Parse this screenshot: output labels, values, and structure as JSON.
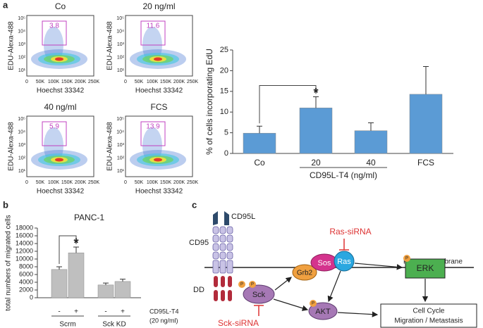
{
  "panel_labels": [
    "a",
    "b",
    "c"
  ],
  "flow": {
    "xlabel": "Hoechst 33342",
    "ylabel": "EDU-Alexa-488",
    "xticks": [
      "0",
      "50K",
      "100K",
      "150K",
      "200K",
      "250K"
    ],
    "yticks": [
      "10¹",
      "10²",
      "10³",
      "10⁴",
      "10⁵"
    ],
    "plots": [
      {
        "title": "Co",
        "gate": 3.8
      },
      {
        "title": "20 ng/ml",
        "gate": 11.6
      },
      {
        "title": "40 ng/ml",
        "gate": 5.9
      },
      {
        "title": "FCS",
        "gate": 13.9
      }
    ]
  },
  "chart_data": [
    {
      "type": "bar",
      "ylabel": "% of cells incorporating EdU",
      "categories": [
        "Co",
        "20",
        "40",
        "FCS"
      ],
      "values": [
        4.9,
        11.0,
        5.5,
        14.3
      ],
      "errors": [
        1.7,
        2.7,
        1.9,
        6.7
      ],
      "color": "#5b9bd5",
      "ylim": [
        0,
        25
      ],
      "yticks": [
        0,
        5,
        10,
        15,
        20,
        25
      ],
      "groups": [
        "CD95L-T4 (ng/ml)"
      ],
      "annotation": "*"
    },
    {
      "type": "bar",
      "title": "PANC-1",
      "ylabel": "total numbers of migrated cells",
      "categories": [
        "-",
        "+",
        "-",
        "+"
      ],
      "values": [
        7300,
        11600,
        3300,
        4200
      ],
      "errors": [
        700,
        1500,
        500,
        600
      ],
      "color": "#bfbfbf",
      "ylim": [
        0,
        18000
      ],
      "yticks": [
        0,
        2000,
        4000,
        6000,
        8000,
        10000,
        12000,
        14000,
        16000,
        18000
      ],
      "groups": [
        "Scrm",
        "Sck KD"
      ],
      "legend": [
        "CD95L-T4",
        "(20 ng/ml)"
      ],
      "annotation": "*"
    }
  ],
  "diagram": {
    "ligand": "CD95L",
    "receptor": "CD95",
    "dd": "DD",
    "membrane": "Plasma membrane",
    "ras_sirna": "Ras-siRNA",
    "sck_sirna": "Sck-siRNA",
    "sck": "Sck",
    "grb2": "Grb2",
    "sos": "Sos",
    "ras": "Ras",
    "erk": "ERK",
    "akt": "AKT",
    "phospho": "P",
    "outcome": [
      "Cell Cycle",
      "Migration / Metastasis"
    ]
  }
}
